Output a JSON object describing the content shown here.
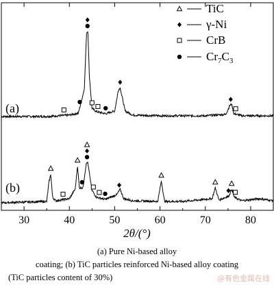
{
  "chart_data": {
    "type": "line",
    "xlabel": "2θ/(°)",
    "xlim": [
      25,
      85
    ],
    "xticks": [
      30,
      40,
      50,
      60,
      70,
      80
    ],
    "panels": [
      "(a)",
      "(b)"
    ],
    "legend": {
      "placement": "top-right",
      "entries": [
        {
          "symbol": "open-triangle",
          "label": "TiC"
        },
        {
          "symbol": "filled-diamond",
          "label": "γ-Ni"
        },
        {
          "symbol": "open-square",
          "label": "CrB"
        },
        {
          "symbol": "filled-circle",
          "label": "Cr7C3"
        }
      ]
    },
    "series": [
      {
        "name": "(a)",
        "x": [
          25,
          35,
          40,
          42,
          43.3,
          43.8,
          44.1,
          44.4,
          45,
          46,
          48,
          50,
          50.8,
          51.2,
          51.6,
          52.3,
          54,
          60,
          70,
          74.5,
          75.4,
          75.8,
          76.3,
          78,
          85
        ],
        "y": [
          0,
          0,
          2,
          5,
          40,
          122,
          125,
          60,
          12,
          7,
          4,
          8,
          38,
          42,
          30,
          8,
          2,
          1,
          1,
          3,
          16,
          18,
          4,
          1,
          1
        ],
        "markers": [
          {
            "x": 44.0,
            "symbol": "filled-circle"
          },
          {
            "x": 44.0,
            "symbol": "filled-diamond"
          },
          {
            "x": 42.3,
            "symbol": "filled-circle"
          },
          {
            "x": 45.0,
            "symbol": "open-square"
          },
          {
            "x": 46.3,
            "symbol": "open-square"
          },
          {
            "x": 48.0,
            "symbol": "filled-circle"
          },
          {
            "x": 38.8,
            "symbol": "open-square"
          },
          {
            "x": 51.2,
            "symbol": "filled-diamond"
          },
          {
            "x": 75.6,
            "symbol": "filled-diamond"
          },
          {
            "x": 76.7,
            "symbol": "open-square"
          }
        ]
      },
      {
        "name": "(b)",
        "x": [
          25,
          35,
          35.5,
          35.9,
          36.3,
          37,
          40,
          41.3,
          41.8,
          42.2,
          43,
          43.7,
          44.0,
          44.3,
          45,
          46,
          48,
          50.5,
          51.2,
          52,
          54,
          59.5,
          60.3,
          61,
          65,
          71.5,
          72.2,
          73,
          75.2,
          75.8,
          76.4,
          78,
          82,
          85
        ],
        "y": [
          0,
          2,
          30,
          42,
          8,
          3,
          6,
          20,
          54,
          22,
          22,
          56,
          60,
          48,
          18,
          8,
          5,
          12,
          20,
          6,
          3,
          2,
          32,
          2,
          2,
          6,
          22,
          4,
          10,
          20,
          8,
          3,
          6,
          3
        ],
        "markers": [
          {
            "x": 35.9,
            "symbol": "open-triangle"
          },
          {
            "x": 41.8,
            "symbol": "open-triangle"
          },
          {
            "x": 43.9,
            "symbol": "filled-circle"
          },
          {
            "x": 43.9,
            "symbol": "filled-diamond"
          },
          {
            "x": 43.9,
            "symbol": "open-triangle"
          },
          {
            "x": 42.8,
            "symbol": "filled-circle"
          },
          {
            "x": 45.3,
            "symbol": "open-square"
          },
          {
            "x": 46.6,
            "symbol": "open-square"
          },
          {
            "x": 47.9,
            "symbol": "filled-circle"
          },
          {
            "x": 38.6,
            "symbol": "open-square"
          },
          {
            "x": 51.0,
            "symbol": "filled-diamond"
          },
          {
            "x": 60.3,
            "symbol": "open-triangle"
          },
          {
            "x": 72.2,
            "symbol": "open-triangle"
          },
          {
            "x": 75.8,
            "symbol": "open-triangle"
          },
          {
            "x": 75.1,
            "symbol": "filled-diamond"
          },
          {
            "x": 76.6,
            "symbol": "open-square"
          }
        ]
      }
    ]
  },
  "captions": {
    "line1": "(a)  Pure  Ni-based  alloy",
    "line2": "coating;  (b)  TiC  particles  reinforced  Ni-based  alloy  coating",
    "line3": "(TiC particles content of 30%)"
  },
  "watermark": "@有色金属在线"
}
